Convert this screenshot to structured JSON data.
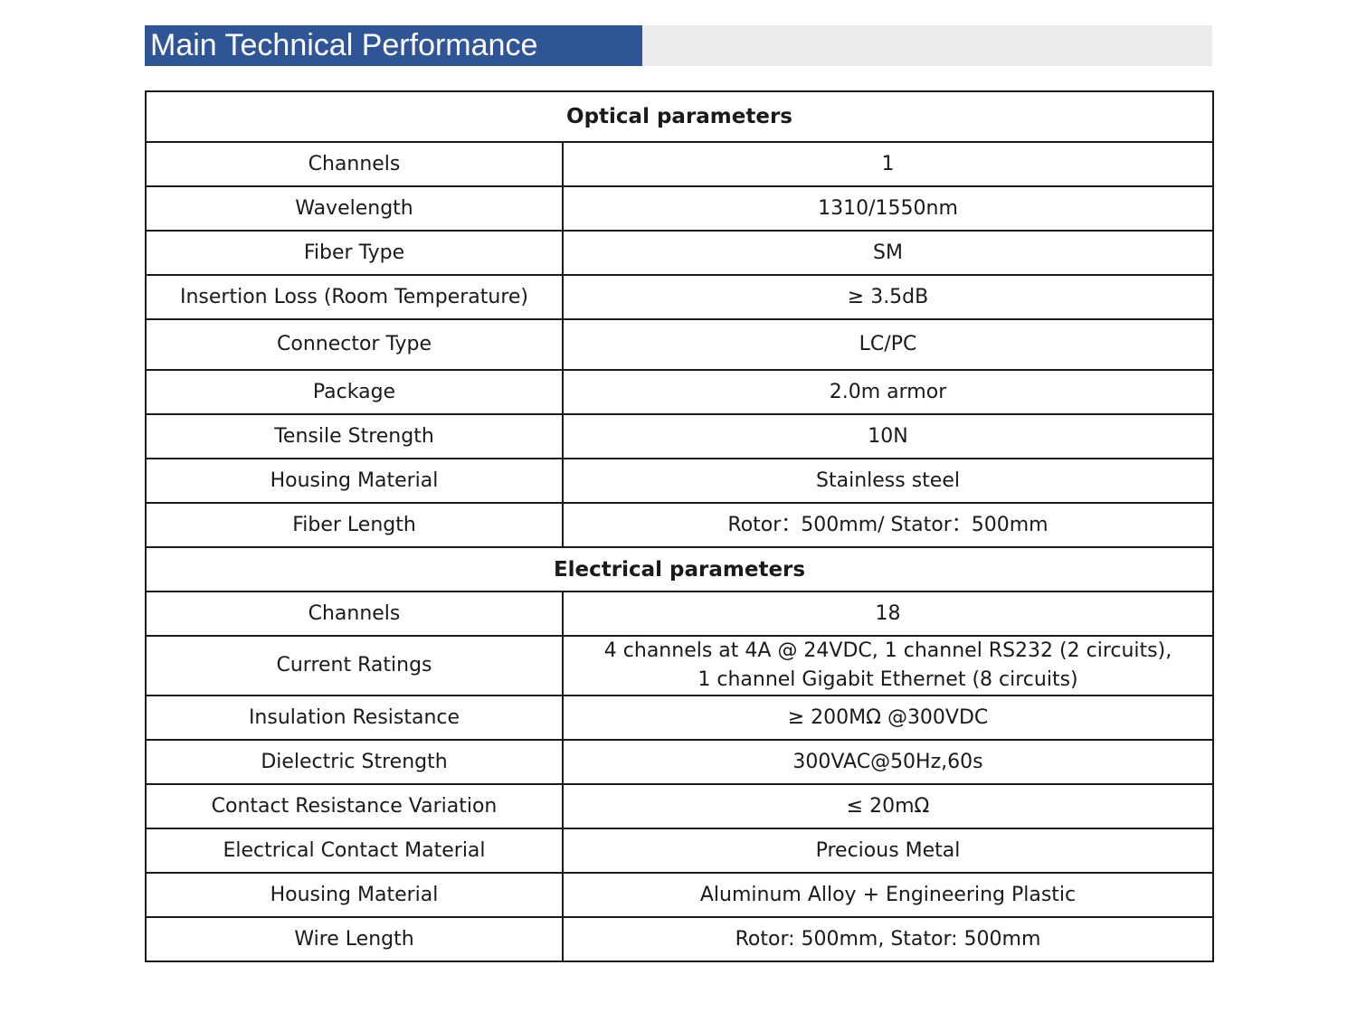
{
  "header": {
    "title": "Main Technical Performance"
  },
  "optical": {
    "heading": "Optical parameters",
    "rows": [
      {
        "label": "Channels",
        "value": "1"
      },
      {
        "label": "Wavelength",
        "value": "1310/1550nm"
      },
      {
        "label": "Fiber Type",
        "value": "SM"
      },
      {
        "label": "Insertion Loss (Room Temperature)",
        "value": "≥ 3.5dB"
      },
      {
        "label": "Connector Type",
        "value": "LC/PC"
      },
      {
        "label": "Package",
        "value": "2.0m armor"
      },
      {
        "label": "Tensile Strength",
        "value": "10N"
      },
      {
        "label": "Housing Material",
        "value": "Stainless steel"
      },
      {
        "label": "Fiber Length",
        "value": "Rotor：500mm/ Stator：500mm"
      }
    ]
  },
  "electrical": {
    "heading": "Electrical parameters",
    "rows": [
      {
        "label": "Channels",
        "value": "18"
      },
      {
        "label": "Current Ratings",
        "value_line1": "4 channels at 4A @ 24VDC, 1 channel RS232 (2 circuits),",
        "value_line2": "1 channel Gigabit Ethernet (8 circuits)"
      },
      {
        "label": "Insulation Resistance",
        "value": "≥ 200MΩ @300VDC"
      },
      {
        "label": "Dielectric Strength",
        "value": "300VAC@50Hz,60s"
      },
      {
        "label": "Contact Resistance Variation",
        "value": "≤ 20mΩ"
      },
      {
        "label": "Electrical Contact Material",
        "value": "Precious Metal"
      },
      {
        "label": "Housing Material",
        "value": "Aluminum Alloy + Engineering Plastic"
      },
      {
        "label": "Wire Length",
        "value": "Rotor: 500mm, Stator: 500mm"
      }
    ]
  }
}
